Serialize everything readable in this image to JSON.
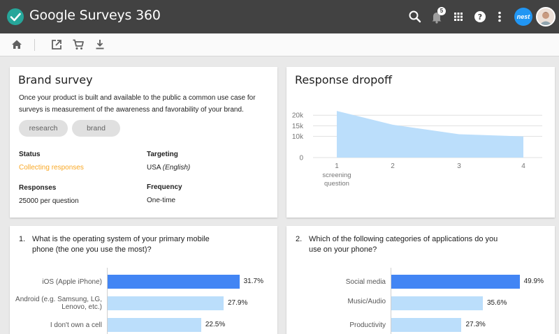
{
  "app": {
    "logo_brand": "Google",
    "logo_product": "Surveys 360",
    "notification_count": "5",
    "account_badge": "nest"
  },
  "icons": {
    "appbar": [
      "search-icon",
      "notifications-icon",
      "apps-grid-icon",
      "help-icon",
      "more-vert-icon"
    ],
    "toolbar": [
      "home-icon",
      "open-in-new-icon",
      "cart-icon",
      "download-icon"
    ]
  },
  "colors": {
    "appbar": "#424242",
    "logo": "#26a69a",
    "status": "#f9a825",
    "bar_highlight": "#4285f4",
    "bar_normal": "#bbdefb",
    "area_fill": "#bbdefb"
  },
  "brand_card": {
    "title": "Brand survey",
    "description": "Once your product is built and available to the public a common use case for surveys is measurement of the awareness and favorability of your brand.",
    "chips": [
      "research",
      "brand"
    ],
    "status_label": "Status",
    "status_value": "Collecting responses",
    "targeting_label": "Targeting",
    "targeting_country": "USA",
    "targeting_language": "(English)",
    "responses_label": "Responses",
    "responses_value": "25000 per question",
    "frequency_label": "Frequency",
    "frequency_value": "One-time"
  },
  "dropoff_card": {
    "title": "Response dropoff"
  },
  "question_1": {
    "number": "1.",
    "text": "What is the operating system of your primary mobile phone (the one you use the most)?"
  },
  "question_2": {
    "number": "2.",
    "text": "Which of the following categories of applications do you use on your phone?"
  },
  "chart_data": [
    {
      "type": "area",
      "title": "Response dropoff",
      "x": [
        "1",
        "2",
        "3",
        "4"
      ],
      "x_tick_labels": [
        "1",
        "2",
        "3",
        "4"
      ],
      "x_annotation": "screening question",
      "y_ticks": [
        "20k",
        "15k",
        "10k",
        "0"
      ],
      "ylim": [
        0,
        25000
      ],
      "series": [
        {
          "values": [
            22000,
            15500,
            11000,
            10000
          ]
        }
      ],
      "grid": true
    },
    {
      "type": "bar",
      "orientation": "horizontal",
      "categories": [
        "iOS (Apple iPhone)",
        "Android (e.g. Samsung, LG, Lenovo, etc.)",
        "I don't own a cell"
      ],
      "values": [
        31.7,
        27.9,
        22.5
      ],
      "value_labels": [
        "31.7%",
        "27.9%",
        "22.5%"
      ],
      "highlight_index": 0
    },
    {
      "type": "bar",
      "orientation": "horizontal",
      "categories": [
        "Social media",
        "Music/Audio",
        "Productivity"
      ],
      "values": [
        49.9,
        35.6,
        27.3
      ],
      "value_labels": [
        "49.9%",
        "35.6%",
        "27.3%"
      ],
      "highlight_index": 0
    }
  ]
}
